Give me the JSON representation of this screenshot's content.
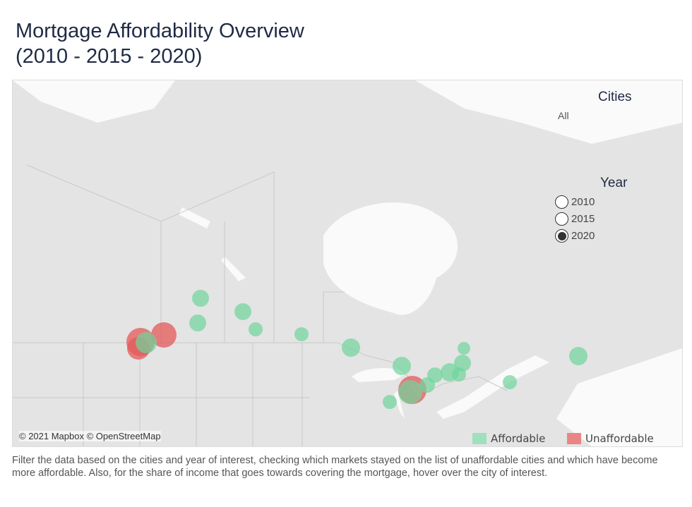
{
  "title": {
    "line1": "Mortgage Affordability Overview",
    "line2": "(2010 - 2015 - 2020)"
  },
  "filters": {
    "cities_label": "Cities",
    "cities_value": "All",
    "year_label": "Year",
    "years": [
      {
        "label": "2010",
        "selected": false
      },
      {
        "label": "2015",
        "selected": false
      },
      {
        "label": "2020",
        "selected": true
      }
    ]
  },
  "map": {
    "credit": "© 2021 Mapbox © OpenStreetMap"
  },
  "legend": {
    "affordable": "Affordable",
    "unaffordable": "Unaffordable",
    "colors": {
      "affordable": "#6fd49b",
      "unaffordable": "#e45a5a"
    }
  },
  "caption": "Filter the data based on the cities and year of interest, checking which markets stayed on the list of unaffordable cities and which have become more affordable. Also, for the share of income that goes towards covering the mortgage, hover over the city of interest."
}
